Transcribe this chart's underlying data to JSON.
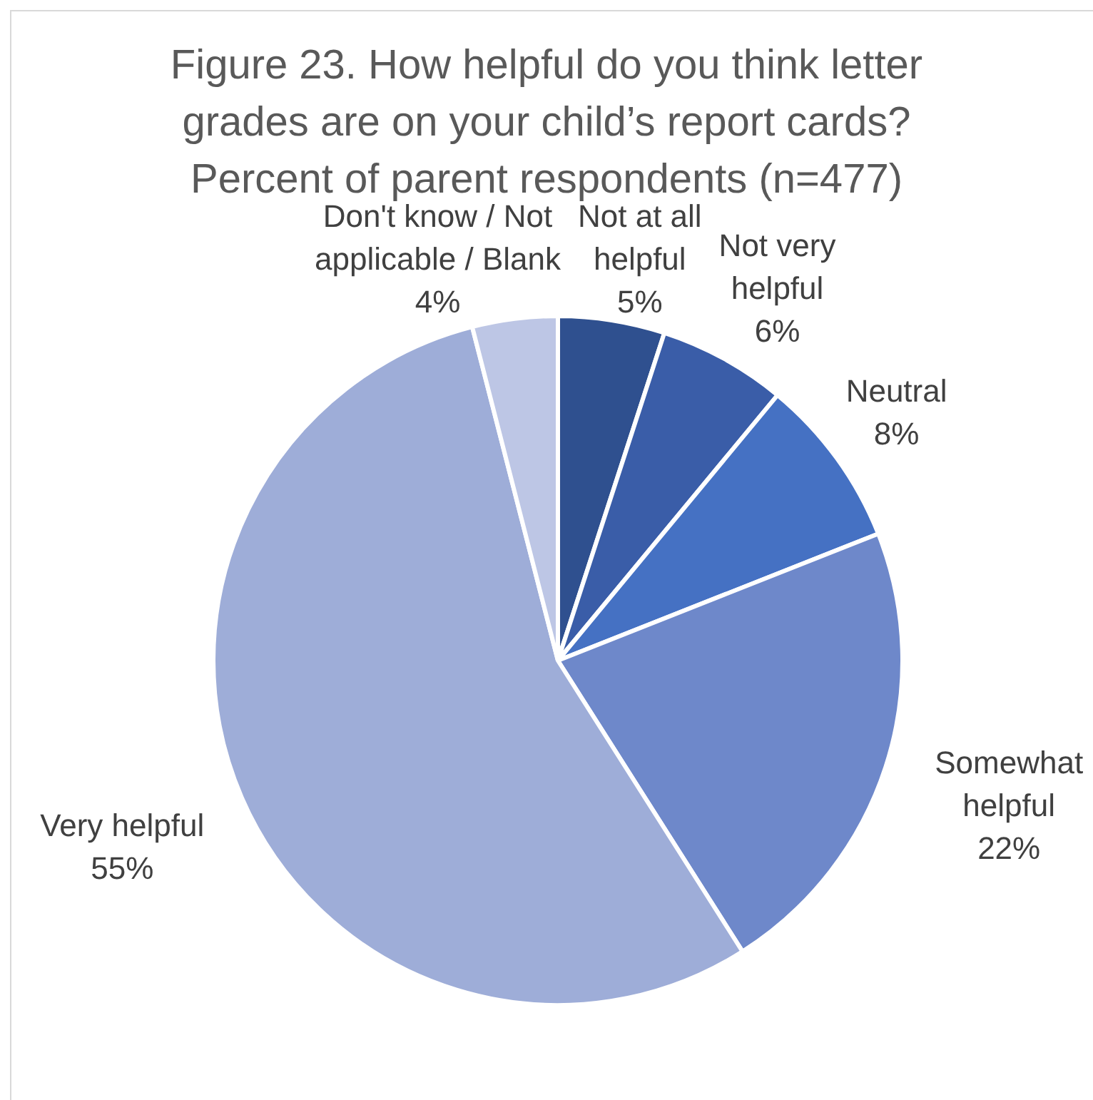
{
  "chart_data": {
    "type": "pie",
    "title": "Figure 23. How helpful do you think letter grades are on your child’s report cards?",
    "subtitle": "Percent of parent respondents (n=477)",
    "categories": [
      "Not at all helpful",
      "Not very helpful",
      "Neutral",
      "Somewhat helpful",
      "Very helpful",
      "Don't know / Not applicable / Blank"
    ],
    "values": [
      5,
      6,
      8,
      22,
      55,
      4
    ],
    "value_labels": [
      "5%",
      "6%",
      "8%",
      "22%",
      "55%",
      "4%"
    ],
    "colors": [
      "#2f508f",
      "#3a5da8",
      "#4571c3",
      "#6e88ca",
      "#9eadd8",
      "#bdc6e5"
    ]
  }
}
